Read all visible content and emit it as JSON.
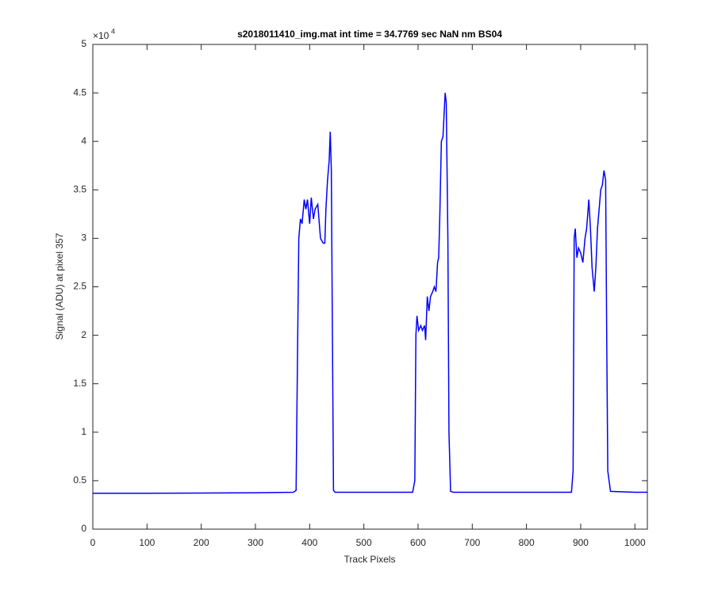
{
  "chart_data": {
    "type": "line",
    "title": "s2018011410_img.mat int time = 34.7769 sec  NaN nm BS04",
    "x_label": "Track Pixels",
    "y_label": "Signal (ADU) at pixel 357",
    "y_exponent_base": "×10",
    "y_exponent": "4",
    "xlim": [
      0,
      1023
    ],
    "xticks": [
      0,
      100,
      200,
      300,
      400,
      500,
      600,
      700,
      800,
      900,
      1000
    ],
    "ylim": [
      0,
      5
    ],
    "yticks": [
      0,
      0.5,
      1,
      1.5,
      2,
      2.5,
      3,
      3.5,
      4,
      4.5,
      5
    ],
    "grid": false,
    "series": [
      {
        "color": "#0000ff",
        "x": [
          0,
          100,
          200,
          300,
          370,
          375,
          378,
          380,
          383,
          386,
          390,
          393,
          396,
          400,
          403,
          407,
          410,
          415,
          420,
          425,
          428,
          430,
          433,
          436,
          438,
          440,
          442,
          444,
          447,
          500,
          590,
          594,
          596,
          598,
          601,
          605,
          608,
          612,
          614,
          617,
          620,
          623,
          627,
          630,
          633,
          636,
          638,
          640,
          643,
          646,
          650,
          652,
          655,
          657,
          660,
          665,
          700,
          800,
          883,
          886,
          888,
          890,
          893,
          896,
          900,
          904,
          908,
          911,
          915,
          918,
          921,
          925,
          928,
          931,
          934,
          937,
          940,
          943,
          946,
          948,
          950,
          955,
          1000,
          1023
        ],
        "values": [
          0.37,
          0.37,
          0.372,
          0.375,
          0.38,
          0.4,
          2.0,
          3.0,
          3.2,
          3.15,
          3.4,
          3.3,
          3.4,
          3.15,
          3.42,
          3.2,
          3.3,
          3.35,
          3.0,
          2.95,
          2.95,
          3.3,
          3.6,
          3.8,
          4.1,
          3.7,
          2.0,
          0.4,
          0.38,
          0.38,
          0.38,
          0.5,
          2.0,
          2.2,
          2.05,
          2.1,
          2.05,
          2.1,
          1.95,
          2.4,
          2.25,
          2.4,
          2.45,
          2.5,
          2.45,
          2.75,
          2.8,
          3.2,
          4.0,
          4.05,
          4.5,
          4.4,
          3.0,
          1.0,
          0.39,
          0.38,
          0.38,
          0.38,
          0.38,
          0.6,
          3.0,
          3.1,
          2.8,
          2.9,
          2.85,
          2.75,
          3.0,
          3.1,
          3.4,
          3.1,
          2.7,
          2.45,
          2.7,
          3.1,
          3.3,
          3.5,
          3.55,
          3.7,
          3.6,
          2.0,
          0.6,
          0.39,
          0.38,
          0.38
        ]
      }
    ]
  }
}
